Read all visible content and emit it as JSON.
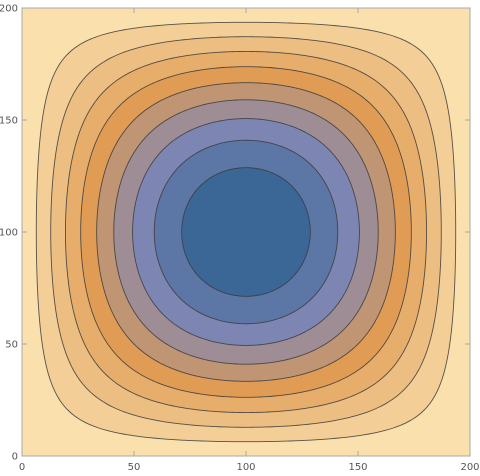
{
  "chart_data": {
    "type": "contour",
    "title": "",
    "xlabel": "",
    "ylabel": "",
    "xlim": [
      0,
      200
    ],
    "ylim": [
      0,
      200
    ],
    "x_ticks": [
      0,
      50,
      100,
      150,
      200
    ],
    "y_ticks": [
      0,
      50,
      100,
      150,
      200
    ],
    "x_tick_labels": [
      "0",
      "50",
      "100",
      "150",
      "200"
    ],
    "y_tick_labels": [
      "0",
      "50",
      "100",
      "150",
      "200"
    ],
    "grid": false,
    "legend": "none",
    "function": "sin(pi*x/200) * sin(pi*y/200)",
    "contour_levels": [
      0.1,
      0.2,
      0.3,
      0.4,
      0.5,
      0.6,
      0.7,
      0.8,
      0.9
    ],
    "colormap": {
      "low": "#fde8b8",
      "mid": "#e09c55",
      "mid_high": "#7d86b3",
      "high": "#2b5f8f"
    },
    "line_color": "#3a3a3a",
    "frame_color": "#a8a8a8"
  }
}
